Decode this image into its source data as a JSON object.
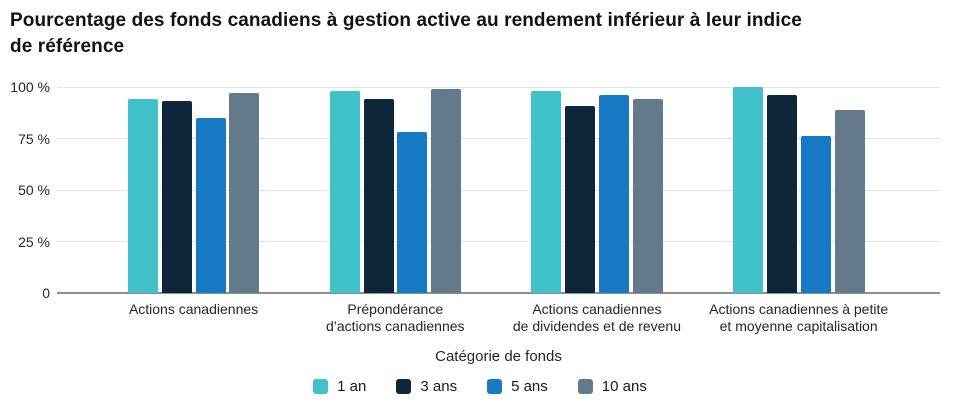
{
  "page": {
    "title": "Pourcentage des fonds canadiens à gestion active au rendement inférieur à leur indice\nde référence"
  },
  "chart_data": {
    "type": "bar",
    "title": "Pourcentage des fonds canadiens à gestion active au rendement inférieur à leur indice de référence",
    "xlabel": "Catégorie de fonds",
    "ylabel": "",
    "ylim": [
      0,
      100
    ],
    "grid": true,
    "legend_position": "bottom",
    "yticks": [
      {
        "value": 100,
        "label": "100 %"
      },
      {
        "value": 75,
        "label": "75 %"
      },
      {
        "value": 50,
        "label": "50 %"
      },
      {
        "value": 25,
        "label": "25 %"
      },
      {
        "value": 0,
        "label": "0"
      }
    ],
    "categories": [
      "Actions canadiennes",
      "Prépondérance\nd’actions canadiennes",
      "Actions canadiennes\nde dividendes et de revenu",
      "Actions canadiennes à petite\net moyenne capitalisation"
    ],
    "series": [
      {
        "name": "1 an",
        "color": "#41C1C9",
        "values": [
          94,
          98,
          98,
          100
        ]
      },
      {
        "name": "3 ans",
        "color": "#0D2639",
        "values": [
          93,
          94,
          91,
          96
        ]
      },
      {
        "name": "5 ans",
        "color": "#1778C4",
        "values": [
          85,
          78,
          96,
          76
        ]
      },
      {
        "name": "10 ans",
        "color": "#647989",
        "values": [
          97,
          99,
          94,
          89
        ]
      }
    ]
  },
  "colors": {
    "teal": "#41C1C9",
    "navy": "#0D2639",
    "blue": "#1778C4",
    "slate_gray": "#647989",
    "gridline": "#E3E3E3",
    "axis_line": "#8E8E8E",
    "text": "#262626"
  }
}
